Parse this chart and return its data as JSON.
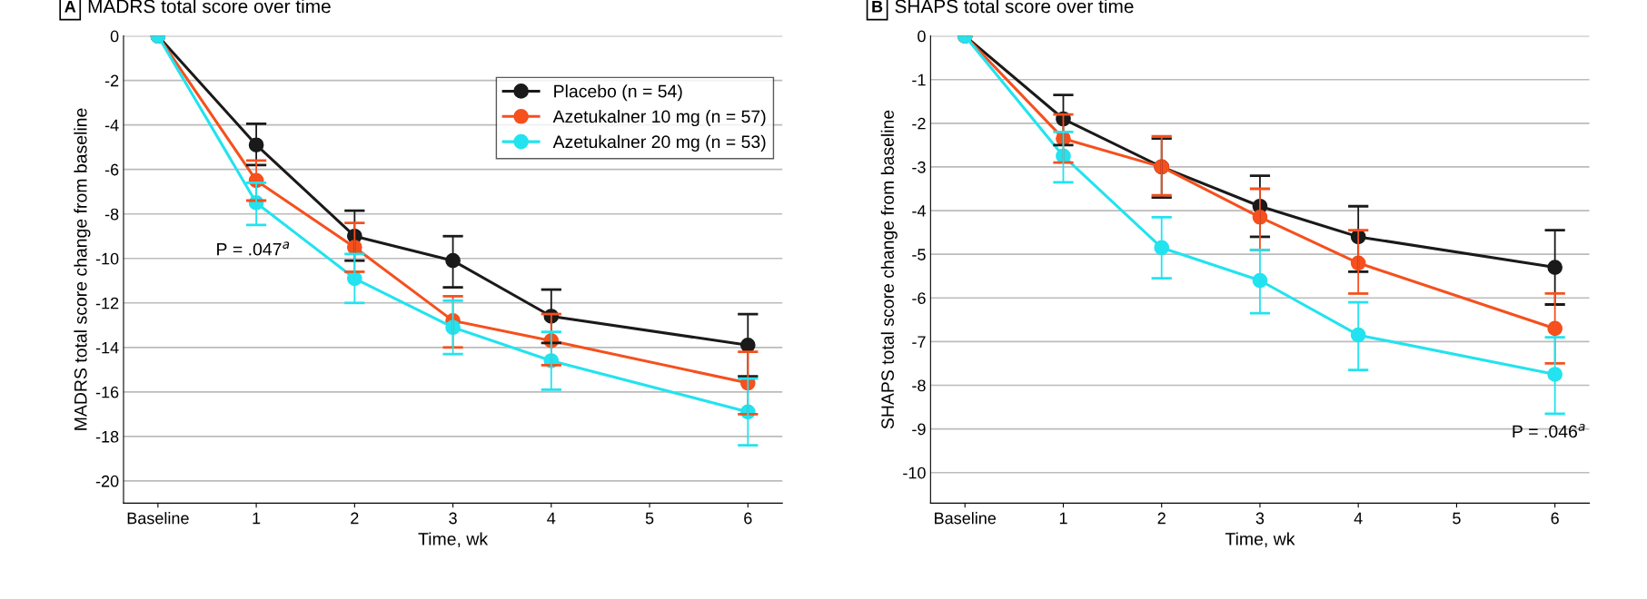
{
  "chart_data": [
    {
      "type": "line",
      "title": "MADRS total score over time",
      "xlabel": "Time, wk",
      "ylabel": "MADRS total score change from baseline",
      "annotations": [
        "A",
        "P = .047$^{a}$"
      ],
      "x": [
        0,
        1,
        2,
        3,
        4,
        6
      ],
      "xlim": [
        -0.35,
        6.35
      ],
      "xticks": [
        {
          "value": 0,
          "label": "Baseline"
        },
        1,
        2,
        3,
        4,
        5,
        6
      ],
      "ylim": [
        -21,
        0
      ],
      "yticks": [
        0,
        -2,
        -4,
        -6,
        -8,
        -10,
        -12,
        -14,
        -16,
        -18,
        -20
      ],
      "grid": "y",
      "legend": "top right",
      "marker": "circle",
      "line_style": "solid",
      "series": [
        {
          "name": "Placebo (n = 54)",
          "color": "#1a1a1a",
          "values": [
            0,
            -4.9,
            -9.0,
            -10.1,
            -12.6,
            -13.9
          ],
          "errors": [
            null,
            [
              -5.8,
              -3.95
            ],
            [
              -10.1,
              -7.85
            ],
            [
              -11.3,
              -9.0
            ],
            [
              -13.8,
              -11.4
            ],
            [
              -15.3,
              -12.5
            ]
          ]
        },
        {
          "name": "Azetukalner 10 mg (n = 57)",
          "color": "#f5501e",
          "values": [
            0,
            -6.5,
            -9.5,
            -12.8,
            -13.7,
            -15.6
          ],
          "errors": [
            null,
            [
              -7.4,
              -5.6
            ],
            [
              -10.6,
              -8.4
            ],
            [
              -14.0,
              -11.7
            ],
            [
              -14.8,
              -12.5
            ],
            [
              -17.0,
              -14.2
            ]
          ]
        },
        {
          "name": "Azetukalner 20 mg (n = 53)",
          "color": "#22e3ef",
          "values": [
            0,
            -7.5,
            -10.9,
            -13.1,
            -14.6,
            -16.9
          ],
          "errors": [
            null,
            [
              -8.5,
              -6.6
            ],
            [
              -12.0,
              -9.8
            ],
            [
              -14.3,
              -11.9
            ],
            [
              -15.9,
              -13.3
            ],
            [
              -18.4,
              -15.4
            ]
          ]
        }
      ]
    },
    {
      "type": "line",
      "title": "SHAPS total score over time",
      "xlabel": "Time, wk",
      "ylabel": "SHAPS total score change from baseline",
      "annotations": [
        "B",
        "P = .046$^{a}$"
      ],
      "x": [
        0,
        1,
        2,
        3,
        4,
        6
      ],
      "xlim": [
        -0.35,
        6.35
      ],
      "xticks": [
        {
          "value": 0,
          "label": "Baseline"
        },
        1,
        2,
        3,
        4,
        5,
        6
      ],
      "ylim": [
        -10.7,
        0
      ],
      "yticks": [
        0,
        -1,
        -2,
        -3,
        -4,
        -5,
        -6,
        -7,
        -8,
        -9,
        -10
      ],
      "grid": "y",
      "marker": "circle",
      "line_style": "solid",
      "series": [
        {
          "color": "#1a1a1a",
          "values": [
            0,
            -1.9,
            -3.0,
            -3.9,
            -4.6,
            -5.3
          ],
          "errors": [
            null,
            [
              -2.5,
              -1.35
            ],
            [
              -3.7,
              -2.35
            ],
            [
              -4.6,
              -3.2
            ],
            [
              -5.4,
              -3.9
            ],
            [
              -6.15,
              -4.45
            ]
          ]
        },
        {
          "color": "#f5501e",
          "values": [
            0,
            -2.35,
            -3.0,
            -4.15,
            -5.2,
            -6.7
          ],
          "errors": [
            null,
            [
              -2.9,
              -1.8
            ],
            [
              -3.65,
              -2.3
            ],
            [
              -4.9,
              -3.5
            ],
            [
              -5.9,
              -4.45
            ],
            [
              -7.5,
              -5.9
            ]
          ]
        },
        {
          "color": "#22e3ef",
          "values": [
            0,
            -2.75,
            -4.85,
            -5.6,
            -6.85,
            -7.75
          ],
          "errors": [
            null,
            [
              -3.35,
              -2.2
            ],
            [
              -5.55,
              -4.15
            ],
            [
              -6.35,
              -4.9
            ],
            [
              -7.65,
              -6.1
            ],
            [
              -8.65,
              -6.9
            ]
          ]
        }
      ]
    }
  ]
}
